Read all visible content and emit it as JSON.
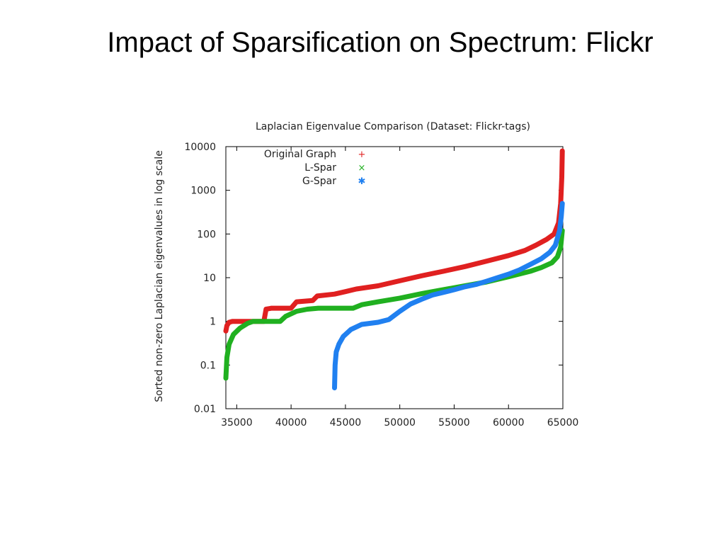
{
  "slide": {
    "title": "Impact of Sparsification on Spectrum: Flickr"
  },
  "chart_data": {
    "type": "scatter",
    "title": "Laplacian Eigenvalue Comparison (Dataset: Flickr-tags)",
    "xlabel": "",
    "ylabel": "Sorted non-zero Laplacian eigenvalues in log scale",
    "xlim": [
      34000,
      65000
    ],
    "ylim": [
      0.01,
      10000
    ],
    "yscale": "log",
    "x_ticks": [
      35000,
      40000,
      45000,
      50000,
      55000,
      60000,
      65000
    ],
    "x_tick_labels": [
      "35000",
      "40000",
      "45000",
      "50000",
      "55000",
      "60000",
      "65000"
    ],
    "y_ticks": [
      0.01,
      0.1,
      1,
      10,
      100,
      1000,
      10000
    ],
    "y_tick_labels": [
      "0.01",
      "0.1",
      "1",
      "10",
      "100",
      "1000",
      "10000"
    ],
    "legend_position": "top-left",
    "series": [
      {
        "name": "Original Graph",
        "marker": "+",
        "color": "#e02020",
        "points": [
          [
            34000,
            0.6
          ],
          [
            34100,
            0.8
          ],
          [
            34300,
            0.95
          ],
          [
            34600,
            1
          ],
          [
            37500,
            1
          ],
          [
            37700,
            1.9
          ],
          [
            38200,
            2
          ],
          [
            40000,
            2
          ],
          [
            40500,
            2.8
          ],
          [
            42000,
            3
          ],
          [
            42400,
            3.8
          ],
          [
            44000,
            4.2
          ],
          [
            45000,
            4.8
          ],
          [
            46000,
            5.5
          ],
          [
            48000,
            6.5
          ],
          [
            50000,
            8.5
          ],
          [
            52000,
            11
          ],
          [
            54000,
            14
          ],
          [
            56000,
            18
          ],
          [
            58000,
            24
          ],
          [
            60000,
            32
          ],
          [
            61500,
            42
          ],
          [
            62500,
            55
          ],
          [
            63500,
            75
          ],
          [
            64200,
            100
          ],
          [
            64600,
            180
          ],
          [
            64800,
            500
          ],
          [
            64900,
            2000
          ],
          [
            64950,
            8000
          ]
        ]
      },
      {
        "name": "L-Spar",
        "marker": "x",
        "color": "#20b020",
        "points": [
          [
            34000,
            0.05
          ],
          [
            34100,
            0.15
          ],
          [
            34300,
            0.3
          ],
          [
            34700,
            0.5
          ],
          [
            35300,
            0.7
          ],
          [
            36000,
            0.9
          ],
          [
            36500,
            1
          ],
          [
            39000,
            1
          ],
          [
            39500,
            1.3
          ],
          [
            40500,
            1.7
          ],
          [
            41500,
            1.9
          ],
          [
            42500,
            2
          ],
          [
            45700,
            2
          ],
          [
            46500,
            2.4
          ],
          [
            48000,
            2.8
          ],
          [
            50000,
            3.4
          ],
          [
            52000,
            4.3
          ],
          [
            54000,
            5.3
          ],
          [
            56000,
            6.5
          ],
          [
            58000,
            8
          ],
          [
            60000,
            10.5
          ],
          [
            62000,
            14
          ],
          [
            63000,
            17
          ],
          [
            64000,
            22
          ],
          [
            64500,
            30
          ],
          [
            64800,
            50
          ],
          [
            64950,
            120
          ]
        ]
      },
      {
        "name": "G-Spar",
        "marker": "*",
        "color": "#2080f0",
        "points": [
          [
            44000,
            0.03
          ],
          [
            44050,
            0.1
          ],
          [
            44150,
            0.2
          ],
          [
            44400,
            0.3
          ],
          [
            44800,
            0.45
          ],
          [
            45500,
            0.65
          ],
          [
            46500,
            0.85
          ],
          [
            48000,
            0.95
          ],
          [
            49000,
            1.1
          ],
          [
            50000,
            1.7
          ],
          [
            51000,
            2.5
          ],
          [
            52000,
            3.2
          ],
          [
            53000,
            4
          ],
          [
            54000,
            4.6
          ],
          [
            55000,
            5.3
          ],
          [
            56000,
            6.2
          ],
          [
            57000,
            7
          ],
          [
            58000,
            8.3
          ],
          [
            59000,
            10
          ],
          [
            60000,
            12
          ],
          [
            61000,
            15
          ],
          [
            62000,
            20
          ],
          [
            63000,
            27
          ],
          [
            63800,
            38
          ],
          [
            64300,
            55
          ],
          [
            64700,
            120
          ],
          [
            64850,
            250
          ],
          [
            64950,
            500
          ]
        ]
      }
    ]
  }
}
